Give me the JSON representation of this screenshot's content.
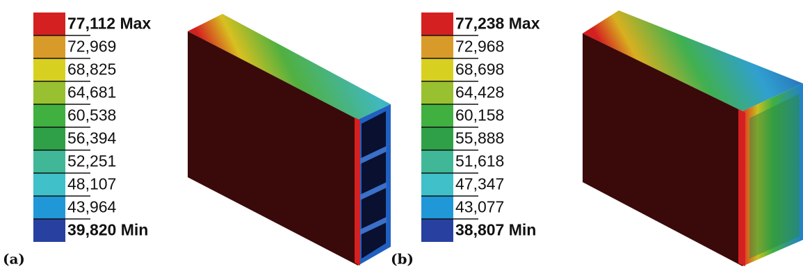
{
  "panels": [
    {
      "label": "(a)",
      "legend": [
        "77,112 Max",
        "72,969",
        "68,825",
        "64,681",
        "60,538",
        "56,394",
        "52,251",
        "48,107",
        "43,964",
        "39,820 Min"
      ]
    },
    {
      "label": "(b)",
      "legend": [
        "77,238 Max",
        "72,968",
        "68,698",
        "64,428",
        "60,158",
        "55,888",
        "51,618",
        "47,347",
        "43,077",
        "38,807 Min"
      ]
    }
  ]
}
